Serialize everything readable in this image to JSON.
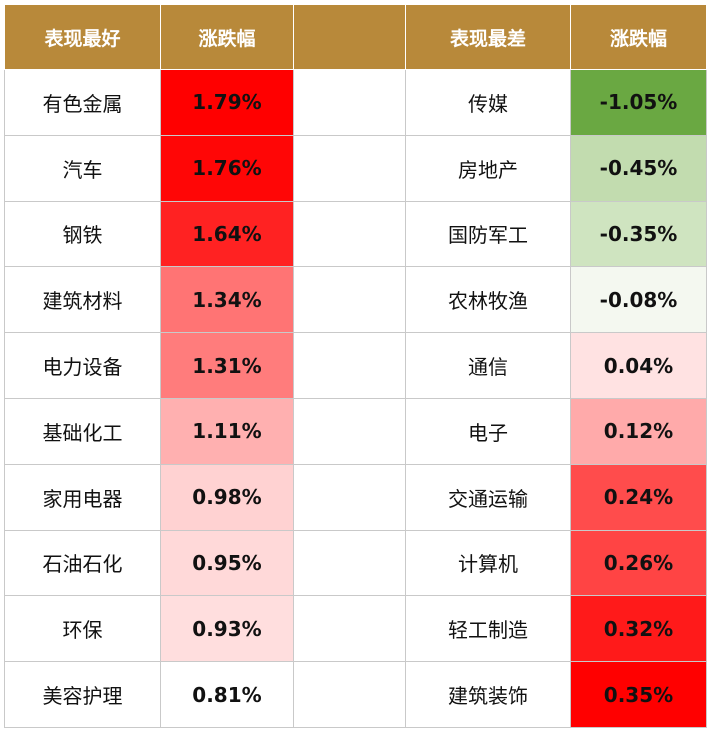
{
  "headers": {
    "best_label": "表现最好",
    "best_change": "涨跌幅",
    "worst_label": "表现最差",
    "worst_change": "涨跌幅"
  },
  "best": [
    {
      "name": "有色金属",
      "change": "1.79%",
      "color": "#ff0000"
    },
    {
      "name": "汽车",
      "change": "1.76%",
      "color": "#ff0606"
    },
    {
      "name": "钢铁",
      "change": "1.64%",
      "color": "#ff2222"
    },
    {
      "name": "建筑材料",
      "change": "1.34%",
      "color": "#ff7474"
    },
    {
      "name": "电力设备",
      "change": "1.31%",
      "color": "#ff7c7c"
    },
    {
      "name": "基础化工",
      "change": "1.11%",
      "color": "#ffb0b0"
    },
    {
      "name": "家用电器",
      "change": "0.98%",
      "color": "#ffd2d2"
    },
    {
      "name": "石油石化",
      "change": "0.95%",
      "color": "#ffd9d9"
    },
    {
      "name": "环保",
      "change": "0.93%",
      "color": "#ffdede"
    },
    {
      "name": "美容护理",
      "change": "0.81%",
      "color": "#ffffff"
    }
  ],
  "worst": [
    {
      "name": "传媒",
      "change": "-1.05%",
      "color": "#6aa842"
    },
    {
      "name": "房地产",
      "change": "-0.45%",
      "color": "#c2dcaf"
    },
    {
      "name": "国防军工",
      "change": "-0.35%",
      "color": "#cfe4c0"
    },
    {
      "name": "农林牧渔",
      "change": "-0.08%",
      "color": "#f4f8f0"
    },
    {
      "name": "通信",
      "change": "0.04%",
      "color": "#ffe2e2"
    },
    {
      "name": "电子",
      "change": "0.12%",
      "color": "#ffaaaa"
    },
    {
      "name": "交通运输",
      "change": "0.24%",
      "color": "#ff4c4c"
    },
    {
      "name": "计算机",
      "change": "0.26%",
      "color": "#ff4444"
    },
    {
      "name": "轻工制造",
      "change": "0.32%",
      "color": "#ff1a1a"
    },
    {
      "name": "建筑装饰",
      "change": "0.35%",
      "color": "#ff0000"
    }
  ]
}
